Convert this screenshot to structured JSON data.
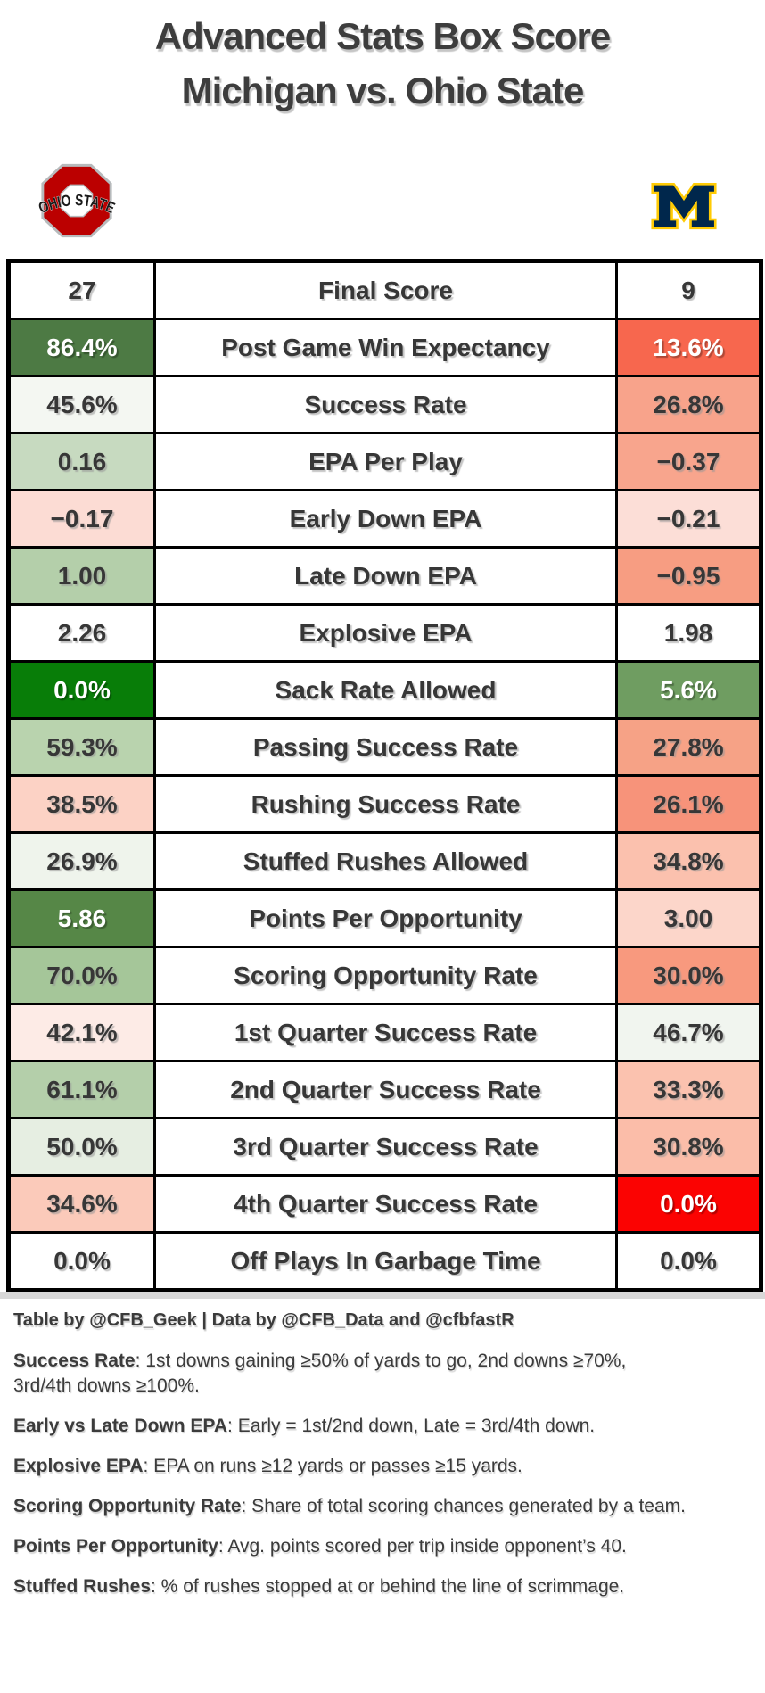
{
  "title": {
    "line1": "Advanced Stats Box Score",
    "line2": "Michigan vs. Ohio State"
  },
  "teams": {
    "left": {
      "name": "Ohio State",
      "wordmark": "OHIO STATE",
      "colors": {
        "primary": "#bb0000",
        "outline": "#b7babc",
        "text": "#1a1a1a"
      }
    },
    "right": {
      "name": "Michigan",
      "letter": "M",
      "colors": {
        "primary": "#00274c",
        "outline": "#ffcb05"
      }
    }
  },
  "table": {
    "rows": [
      {
        "label": "Final Score",
        "left": {
          "value": "27",
          "bg": "#ffffff",
          "text": "#373737"
        },
        "right": {
          "value": "9",
          "bg": "#ffffff",
          "text": "#373737"
        }
      },
      {
        "label": "Post Game Win Expectancy",
        "left": {
          "value": "86.4%",
          "bg": "#4d7a44",
          "text": "#ffffff"
        },
        "right": {
          "value": "13.6%",
          "bg": "#f7674e",
          "text": "#ffffff"
        }
      },
      {
        "label": "Success Rate",
        "left": {
          "value": "45.6%",
          "bg": "#f4f7f2",
          "text": "#373737"
        },
        "right": {
          "value": "26.8%",
          "bg": "#f8a38b",
          "text": "#373737"
        }
      },
      {
        "label": "EPA Per Play",
        "left": {
          "value": "0.16",
          "bg": "#c7dac0",
          "text": "#373737"
        },
        "right": {
          "value": "−0.37",
          "bg": "#f8a58d",
          "text": "#373737"
        }
      },
      {
        "label": "Early Down EPA",
        "left": {
          "value": "−0.17",
          "bg": "#fcdcd4",
          "text": "#373737"
        },
        "right": {
          "value": "−0.21",
          "bg": "#fcded7",
          "text": "#373737"
        }
      },
      {
        "label": "Late Down EPA",
        "left": {
          "value": "1.00",
          "bg": "#b4cfaa",
          "text": "#373737"
        },
        "right": {
          "value": "−0.95",
          "bg": "#f79d82",
          "text": "#373737"
        }
      },
      {
        "label": "Explosive EPA",
        "left": {
          "value": "2.26",
          "bg": "#ffffff",
          "text": "#373737"
        },
        "right": {
          "value": "1.98",
          "bg": "#ffffff",
          "text": "#373737"
        }
      },
      {
        "label": "Sack Rate Allowed",
        "left": {
          "value": "0.0%",
          "bg": "#087d08",
          "text": "#ffffff"
        },
        "right": {
          "value": "5.6%",
          "bg": "#6f9d61",
          "text": "#ffffff"
        }
      },
      {
        "label": "Passing Success Rate",
        "left": {
          "value": "59.3%",
          "bg": "#b9d3ae",
          "text": "#373737"
        },
        "right": {
          "value": "27.8%",
          "bg": "#f6a286",
          "text": "#373737"
        }
      },
      {
        "label": "Rushing Success Rate",
        "left": {
          "value": "38.5%",
          "bg": "#fcd2c5",
          "text": "#373737"
        },
        "right": {
          "value": "26.1%",
          "bg": "#f7937a",
          "text": "#373737"
        }
      },
      {
        "label": "Stuffed Rushes Allowed",
        "left": {
          "value": "26.9%",
          "bg": "#eff4ec",
          "text": "#373737"
        },
        "right": {
          "value": "34.8%",
          "bg": "#fbc1ae",
          "text": "#373737"
        }
      },
      {
        "label": "Points Per Opportunity",
        "left": {
          "value": "5.86",
          "bg": "#568747",
          "text": "#ffffff"
        },
        "right": {
          "value": "3.00",
          "bg": "#fcd6ca",
          "text": "#373737"
        }
      },
      {
        "label": "Scoring Opportunity Rate",
        "left": {
          "value": "70.0%",
          "bg": "#a5c699",
          "text": "#373737"
        },
        "right": {
          "value": "30.0%",
          "bg": "#f8997e",
          "text": "#373737"
        }
      },
      {
        "label": "1st Quarter Success Rate",
        "left": {
          "value": "42.1%",
          "bg": "#fdebe6",
          "text": "#373737"
        },
        "right": {
          "value": "46.7%",
          "bg": "#f1f5ef",
          "text": "#373737"
        }
      },
      {
        "label": "2nd Quarter Success Rate",
        "left": {
          "value": "61.1%",
          "bg": "#b4cfaa",
          "text": "#373737"
        },
        "right": {
          "value": "33.3%",
          "bg": "#fbc2af",
          "text": "#373737"
        }
      },
      {
        "label": "3rd Quarter Success Rate",
        "left": {
          "value": "50.0%",
          "bg": "#e6eee2",
          "text": "#373737"
        },
        "right": {
          "value": "30.8%",
          "bg": "#fbbda9",
          "text": "#373737"
        }
      },
      {
        "label": "4th Quarter Success Rate",
        "left": {
          "value": "34.6%",
          "bg": "#fbcaba",
          "text": "#373737"
        },
        "right": {
          "value": "0.0%",
          "bg": "#fb0302",
          "text": "#ffffff"
        }
      },
      {
        "label": "Off Plays In Garbage Time",
        "left": {
          "value": "0.0%",
          "bg": "#ffffff",
          "text": "#373737"
        },
        "right": {
          "value": "0.0%",
          "bg": "#ffffff",
          "text": "#373737"
        }
      }
    ]
  },
  "attribution": "Table by @CFB_Geek | Data by @CFB_Data and @cfbfastR",
  "notes": [
    {
      "term": "Success Rate",
      "definition": ": 1st downs gaining ≥50% of yards to go, 2nd downs ≥70%, 3rd/4th downs ≥100%."
    },
    {
      "term": "Early vs Late Down EPA",
      "definition": ": Early = 1st/2nd down, Late = 3rd/4th down."
    },
    {
      "term": "Explosive EPA",
      "definition": ": EPA on runs ≥12 yards or passes ≥15 yards."
    },
    {
      "term": "Scoring Opportunity Rate",
      "definition": ": Share of total scoring chances generated by a team."
    },
    {
      "term": "Points Per Opportunity",
      "definition": ": Avg. points scored per trip inside opponent’s 40."
    },
    {
      "term": "Stuffed Rushes",
      "definition": ": % of rushes stopped at or behind the line of scrimmage."
    }
  ],
  "chart_data": {
    "type": "table",
    "title": "Advanced Stats Box Score — Michigan vs. Ohio State",
    "categories": [
      "Final Score",
      "Post Game Win Expectancy",
      "Success Rate",
      "EPA Per Play",
      "Early Down EPA",
      "Late Down EPA",
      "Explosive EPA",
      "Sack Rate Allowed",
      "Passing Success Rate",
      "Rushing Success Rate",
      "Stuffed Rushes Allowed",
      "Points Per Opportunity",
      "Scoring Opportunity Rate",
      "1st Quarter Success Rate",
      "2nd Quarter Success Rate",
      "3rd Quarter Success Rate",
      "4th Quarter Success Rate",
      "Off Plays In Garbage Time"
    ],
    "series": [
      {
        "name": "Ohio State",
        "values": [
          27,
          86.4,
          45.6,
          0.16,
          -0.17,
          1.0,
          2.26,
          0.0,
          59.3,
          38.5,
          26.9,
          5.86,
          70.0,
          42.1,
          61.1,
          50.0,
          34.6,
          0.0
        ]
      },
      {
        "name": "Michigan",
        "values": [
          9,
          13.6,
          26.8,
          -0.37,
          -0.21,
          -0.95,
          1.98,
          5.6,
          27.8,
          26.1,
          34.8,
          3.0,
          30.0,
          46.7,
          33.3,
          30.8,
          0.0,
          0.0
        ]
      }
    ],
    "layout": {
      "left_column_team": "Ohio State",
      "right_column_team": "Michigan",
      "cell_shading": "green = good, red = bad"
    }
  }
}
